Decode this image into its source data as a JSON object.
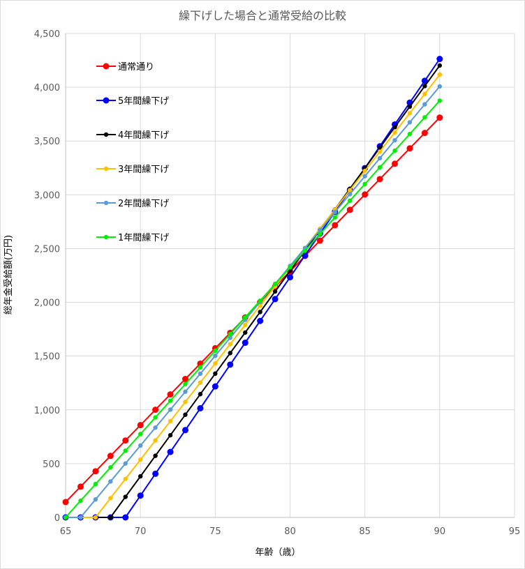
{
  "chart_data": {
    "type": "line",
    "title": "繰下げした場合と通常受給の比較",
    "xlabel": "年齢（歳）",
    "ylabel": "総年金受給額(万円)",
    "xlim": [
      65,
      95
    ],
    "ylim": [
      0,
      4500
    ],
    "x_ticks": [
      65,
      70,
      75,
      80,
      85,
      90,
      95
    ],
    "x_tick_labels": [
      "65",
      "70",
      "75",
      "80",
      "85",
      "90",
      "95"
    ],
    "y_ticks": [
      0,
      500,
      1000,
      1500,
      2000,
      2500,
      3000,
      3500,
      4000,
      4500
    ],
    "y_tick_labels": [
      "0",
      "500",
      "1,000",
      "1,500",
      "2,000",
      "2,500",
      "3,000",
      "3,500",
      "4,000",
      "4,500"
    ],
    "grid": true,
    "legend_position": "top-left-inside",
    "x": [
      65,
      66,
      67,
      68,
      69,
      70,
      71,
      72,
      73,
      74,
      75,
      76,
      77,
      78,
      79,
      80,
      81,
      82,
      83,
      84,
      85,
      86,
      87,
      88,
      89,
      90
    ],
    "series": [
      {
        "name": "通常通り",
        "color": "#ff0000",
        "marker_size": "large",
        "values": [
          143,
          286,
          429,
          572,
          715,
          858,
          1001,
          1144,
          1287,
          1430,
          1573,
          1716,
          1859,
          2002,
          2145,
          2288,
          2431,
          2574,
          2717,
          2860,
          3003,
          3146,
          3289,
          3432,
          3575,
          3718
        ]
      },
      {
        "name": "5年間繰下げ",
        "color": "#0000ff",
        "marker_size": "large",
        "values": [
          0,
          0,
          0,
          0,
          0,
          203,
          406,
          609,
          812,
          1015,
          1218,
          1421,
          1624,
          1827,
          2030,
          2233,
          2436,
          2639,
          2842,
          3045,
          3248,
          3451,
          3654,
          3857,
          4060,
          4263
        ]
      },
      {
        "name": "4年間繰下げ",
        "color": "#000000",
        "marker_size": "small",
        "values": [
          0,
          0,
          0,
          0,
          191,
          382,
          573,
          764,
          955,
          1146,
          1337,
          1528,
          1719,
          1910,
          2101,
          2292,
          2483,
          2674,
          2865,
          3056,
          3247,
          3438,
          3629,
          3820,
          4011,
          4202
        ]
      },
      {
        "name": "3年間繰下げ",
        "color": "#ffc000",
        "marker_size": "small",
        "values": [
          0,
          0,
          0,
          179,
          358,
          537,
          716,
          895,
          1074,
          1253,
          1432,
          1611,
          1790,
          1969,
          2148,
          2327,
          2506,
          2685,
          2864,
          3043,
          3222,
          3401,
          3580,
          3759,
          3938,
          4117
        ]
      },
      {
        "name": "2年間繰下げ",
        "color": "#5b9bd5",
        "marker_size": "small",
        "values": [
          0,
          0,
          167,
          334,
          501,
          668,
          835,
          1002,
          1169,
          1336,
          1503,
          1670,
          1837,
          2004,
          2171,
          2338,
          2505,
          2672,
          2839,
          3006,
          3173,
          3340,
          3507,
          3674,
          3841,
          4008
        ]
      },
      {
        "name": "1年間繰下げ",
        "color": "#00ee00",
        "marker_size": "small",
        "values": [
          0,
          155,
          310,
          465,
          620,
          775,
          930,
          1085,
          1240,
          1395,
          1550,
          1705,
          1860,
          2015,
          2170,
          2325,
          2480,
          2635,
          2790,
          2945,
          3100,
          3255,
          3410,
          3565,
          3720,
          3875
        ]
      }
    ]
  }
}
